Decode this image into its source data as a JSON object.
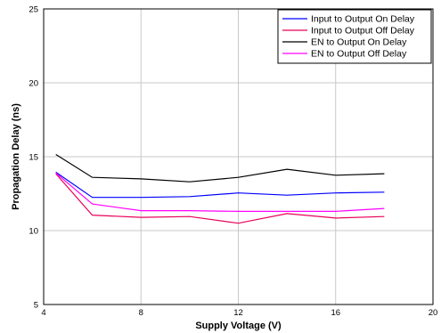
{
  "chart_data": {
    "type": "line",
    "title": "",
    "xlabel": "Supply Voltage (V)",
    "ylabel": "Propagation Delay (ns)",
    "xlim": [
      4,
      20
    ],
    "ylim": [
      5,
      25
    ],
    "xticks": [
      4,
      8,
      12,
      16,
      20
    ],
    "yticks": [
      5,
      10,
      15,
      20,
      25
    ],
    "grid": true,
    "legend_position": "top-right",
    "series": [
      {
        "name": "Input to Output On Delay",
        "color": "#0000ff",
        "x": [
          4.5,
          6,
          8,
          10,
          12,
          14,
          16,
          18
        ],
        "y": [
          13.95,
          12.25,
          12.25,
          12.3,
          12.55,
          12.4,
          12.55,
          12.6
        ]
      },
      {
        "name": "Input to Output Off Delay",
        "color": "#e8005a",
        "x": [
          4.5,
          6,
          8,
          10,
          12,
          14,
          16,
          18
        ],
        "y": [
          13.85,
          11.05,
          10.9,
          10.95,
          10.5,
          11.15,
          10.85,
          10.95
        ]
      },
      {
        "name": "EN to Output On Delay",
        "color": "#000000",
        "x": [
          4.5,
          6,
          8,
          10,
          12,
          14,
          16,
          18
        ],
        "y": [
          15.15,
          13.6,
          13.5,
          13.3,
          13.6,
          14.15,
          13.75,
          13.85
        ]
      },
      {
        "name": "EN to Output Off Delay",
        "color": "#ff00ff",
        "x": [
          4.5,
          6,
          8,
          10,
          12,
          14,
          16,
          18
        ],
        "y": [
          13.9,
          11.8,
          11.35,
          11.35,
          11.3,
          11.3,
          11.3,
          11.5
        ]
      }
    ]
  }
}
